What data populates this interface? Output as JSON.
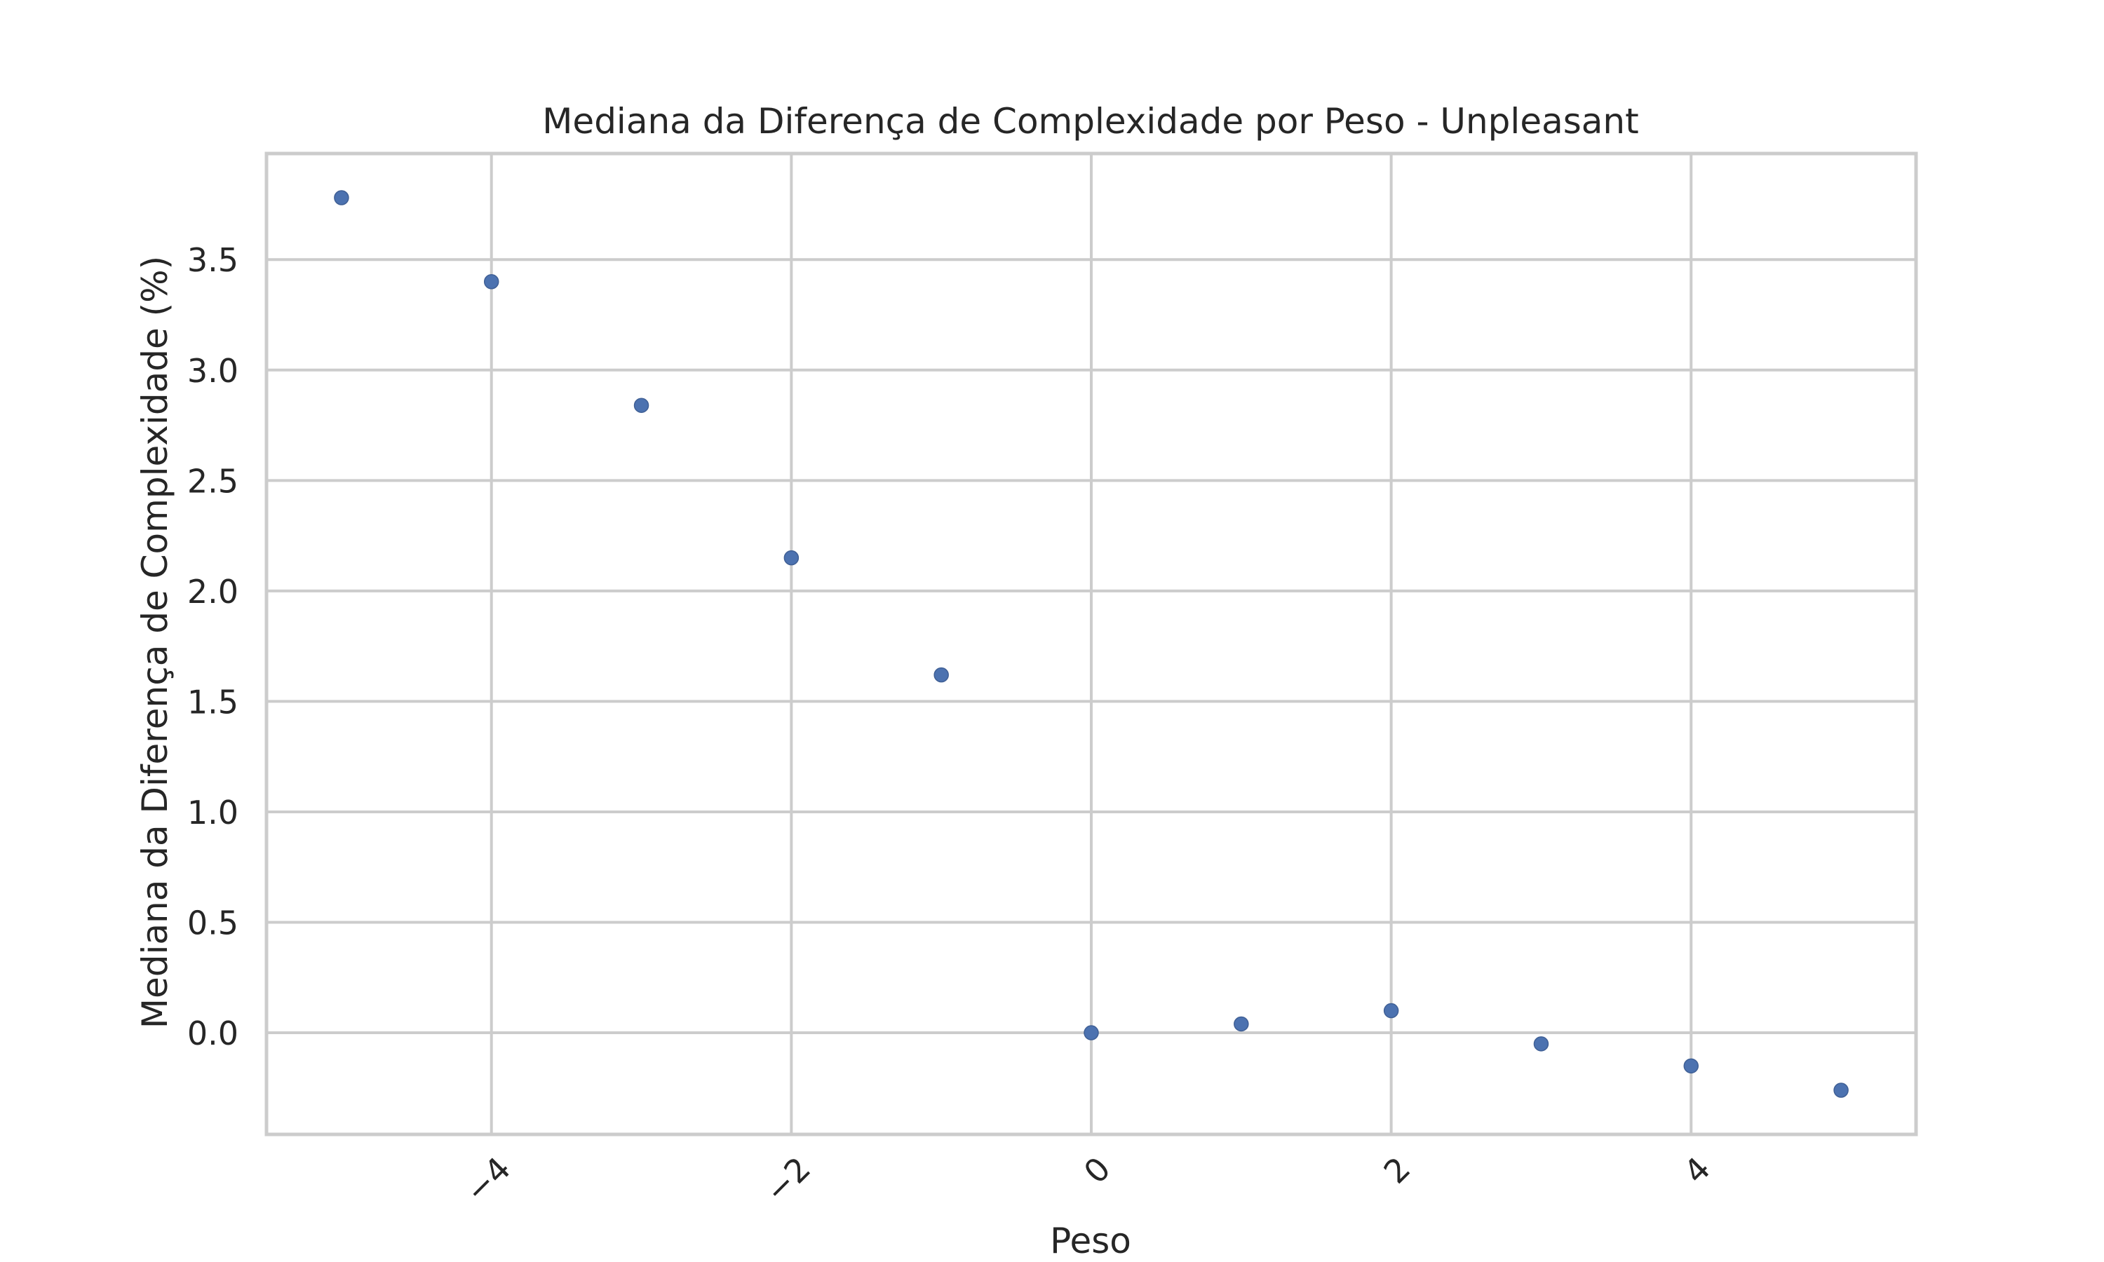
{
  "chart_data": {
    "type": "scatter",
    "title": "Mediana da Diferença de Complexidade por Peso - Unpleasant",
    "xlabel": "Peso",
    "ylabel": "Mediana da Diferença de Complexidade (%)",
    "x": [
      -5,
      -4,
      -3,
      -2,
      -1,
      0,
      1,
      2,
      3,
      4,
      5
    ],
    "y": [
      3.78,
      3.4,
      2.84,
      2.15,
      1.62,
      0.0,
      0.04,
      0.1,
      -0.05,
      -0.15,
      -0.26
    ],
    "xlim": [
      -5.5,
      5.5
    ],
    "ylim": [
      -0.46,
      3.98
    ],
    "xticks": [
      -4,
      -2,
      0,
      2,
      4
    ],
    "xtick_labels": [
      "−4",
      "−2",
      "0",
      "2",
      "4"
    ],
    "xtick_rotation": -45,
    "yticks": [
      0.0,
      0.5,
      1.0,
      1.5,
      2.0,
      2.5,
      3.0,
      3.5
    ],
    "ytick_labels": [
      "0.0",
      "0.5",
      "1.0",
      "1.5",
      "2.0",
      "2.5",
      "3.0",
      "3.5"
    ],
    "grid": true,
    "marker_color": "#4c72b0"
  }
}
